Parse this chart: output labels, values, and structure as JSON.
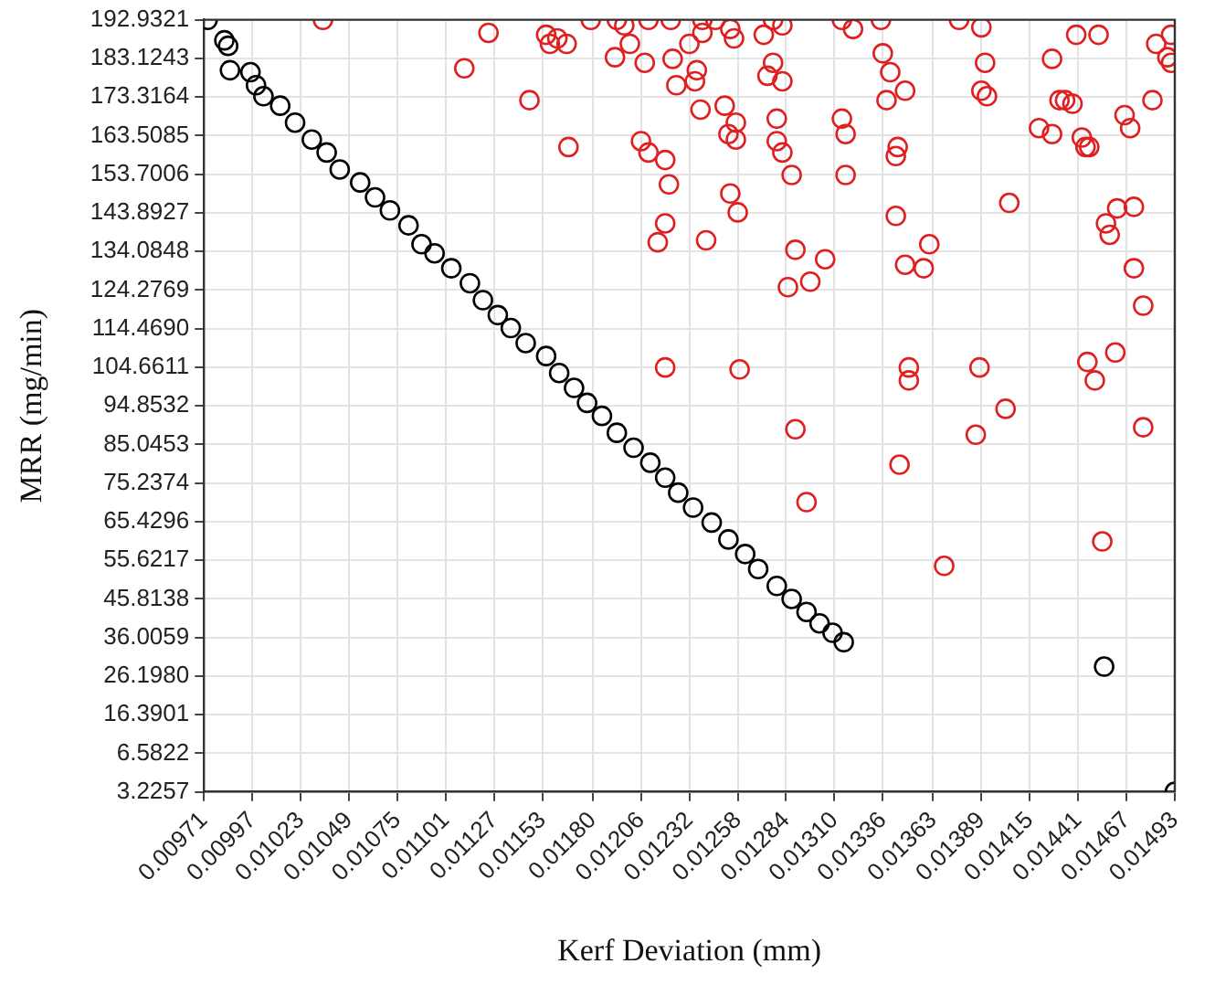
{
  "chart_data": {
    "type": "scatter",
    "xlabel": "Kerf Deviation (mm)",
    "ylabel": "MRR (mg/min)",
    "xlim": [
      0.00971,
      0.01493
    ],
    "ylim": [
      -3.2257,
      192.9321
    ],
    "xticks": [
      0.00971,
      0.00997,
      0.01023,
      0.01049,
      0.01075,
      0.01101,
      0.01127,
      0.01153,
      {
        "value": 0.0118,
        "label": "0.01180"
      },
      0.01206,
      0.01232,
      0.01258,
      0.01284,
      {
        "value": 0.0131,
        "label": "0.01310"
      },
      0.01336,
      0.01363,
      0.01389,
      0.01415,
      0.01441,
      0.01467,
      0.01493
    ],
    "yticks": [
      {
        "value": -3.2257,
        "label": "3.2257"
      },
      6.5822,
      16.3901,
      {
        "value": 26.198,
        "label": "26.1980"
      },
      36.0059,
      45.8138,
      55.6217,
      65.4296,
      75.2374,
      85.0453,
      94.8532,
      104.6611,
      {
        "value": 114.469,
        "label": "114.4690"
      },
      124.2769,
      134.0848,
      143.8927,
      153.7006,
      163.5085,
      173.3164,
      183.1243,
      192.9321
    ],
    "grid": true,
    "marker": "circle",
    "legend": false,
    "series": [
      {
        "color": "#000000",
        "x": [
          0.00973,
          0.00982,
          0.00984,
          0.00985,
          0.00996,
          0.00999,
          0.01003,
          0.01012,
          0.0102,
          0.01029,
          0.01037,
          0.01044,
          0.01055,
          0.01063,
          0.01071,
          0.01081,
          0.01088,
          0.01095,
          0.01104,
          0.01114,
          0.01121,
          0.01129,
          0.01136,
          0.01144,
          0.01155,
          0.01162,
          0.0117,
          0.01177,
          0.01185,
          0.01193,
          0.01202,
          0.01211,
          0.01219,
          0.01226,
          0.01234,
          0.01244,
          0.01253,
          0.01262,
          0.01269,
          0.01279,
          0.01287,
          0.01295,
          0.01302,
          0.01309,
          0.01315,
          0.01455,
          0.01493
        ],
        "values": [
          192.9,
          187.7,
          186.3,
          180.1,
          179.6,
          176.3,
          173.5,
          171.1,
          166.8,
          162.5,
          159.2,
          154.9,
          151.6,
          147.8,
          144.5,
          140.7,
          135.9,
          133.6,
          129.8,
          126,
          121.7,
          117.9,
          114.6,
          110.8,
          107.5,
          103.2,
          99.4,
          95.6,
          92.3,
          88,
          84.2,
          80.4,
          76.6,
          72.8,
          69,
          65.2,
          60.9,
          57.2,
          53.4,
          49.1,
          45.8,
          42.5,
          39.6,
          37.2,
          34.8,
          28.6,
          -3.2
        ]
      },
      {
        "color": "#e02020",
        "x": [
          0.01035,
          0.01124,
          0.01111,
          0.01155,
          0.01157,
          0.01161,
          0.01146,
          0.01167,
          0.01166,
          0.01179,
          0.01193,
          0.01197,
          0.01192,
          0.0121,
          0.012,
          0.01208,
          0.01222,
          0.01223,
          0.01232,
          0.01225,
          0.0121,
          0.01206,
          0.01219,
          0.01215,
          0.01219,
          0.01221,
          0.01239,
          0.01239,
          0.01236,
          0.01235,
          0.01246,
          0.01254,
          0.01256,
          0.01238,
          0.01251,
          0.01253,
          0.01257,
          0.01241,
          0.01254,
          0.01258,
          0.01272,
          0.01277,
          0.01282,
          0.01277,
          0.01274,
          0.01282,
          0.01279,
          0.01279,
          0.01282,
          0.01287,
          0.01289,
          0.01297,
          0.01285,
          0.01305,
          0.01257,
          0.01314,
          0.0132,
          0.01314,
          0.01316,
          0.01316,
          0.01335,
          0.01336,
          0.0134,
          0.01348,
          0.01338,
          0.01344,
          0.01343,
          0.01343,
          0.01348,
          0.01358,
          0.01377,
          0.01389,
          0.01391,
          0.01389,
          0.01392,
          0.01361,
          0.01404,
          0.0142,
          0.01427,
          0.01431,
          0.01434,
          0.01438,
          0.01427,
          0.01443,
          0.01445,
          0.01447,
          0.01458,
          0.01471,
          0.01471,
          0.01476,
          0.01461,
          0.01483,
          0.01489,
          0.01491,
          0.01481,
          0.01469,
          0.01466,
          0.01452,
          0.0144,
          0.01456,
          0.01462,
          0.01491,
          0.01369,
          0.01454,
          0.01295,
          0.01289,
          0.01345,
          0.01386,
          0.01402,
          0.01476,
          0.01219,
          0.01259,
          0.0135,
          0.0135,
          0.01388,
          0.0145,
          0.01446
        ],
        "values": [
          192.9,
          189.6,
          180.6,
          189.1,
          186.8,
          188.2,
          172.5,
          160.6,
          186.8,
          192.9,
          192.9,
          191.5,
          183.4,
          192.9,
          186.8,
          182,
          192.9,
          183,
          186.8,
          176.3,
          159.2,
          162.1,
          157.3,
          136.4,
          141.2,
          151.1,
          192.9,
          189.6,
          180.1,
          177.3,
          192.9,
          190.6,
          188.2,
          170.1,
          171.1,
          163.9,
          162.5,
          136.9,
          148.8,
          144,
          189.1,
          192.9,
          191.5,
          182,
          178.7,
          177.3,
          167.8,
          162.1,
          159.2,
          153.5,
          134.5,
          126.4,
          125,
          132.1,
          166.8,
          192.9,
          190.6,
          167.8,
          163.9,
          153.5,
          192.9,
          184.4,
          179.6,
          174.9,
          172.5,
          160.6,
          158.3,
          143.1,
          130.7,
          129.8,
          192.9,
          191,
          182,
          174.9,
          173.5,
          135.9,
          146.4,
          165.4,
          183,
          172.5,
          172.5,
          171.6,
          163.9,
          163,
          160.6,
          160.6,
          138.3,
          145.4,
          129.8,
          120.3,
          108.4,
          186.8,
          183.4,
          182,
          172.5,
          165.4,
          168.7,
          189.1,
          189.1,
          141.2,
          145,
          189.1,
          54.2,
          60.4,
          70.4,
          88.9,
          79.9,
          87.5,
          94.1,
          89.4,
          104.6,
          104.1,
          101.3,
          104.6,
          104.6,
          101.3,
          106
        ]
      }
    ]
  }
}
